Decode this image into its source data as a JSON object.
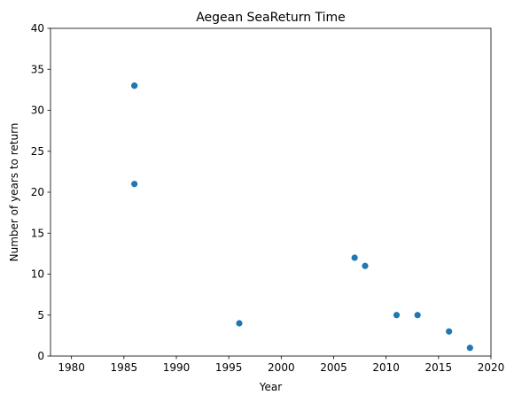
{
  "chart_data": {
    "type": "scatter",
    "title": "Aegean SeaReturn Time",
    "xlabel": "Year",
    "ylabel": "Number of years to return",
    "xlim": [
      1978,
      2020
    ],
    "ylim": [
      0,
      40
    ],
    "xticks": [
      1980,
      1985,
      1990,
      1995,
      2000,
      2005,
      2010,
      2015,
      2020
    ],
    "yticks": [
      0,
      5,
      10,
      15,
      20,
      25,
      30,
      35,
      40
    ],
    "grid": false,
    "legend": "none",
    "marker_color": "#1f77b4",
    "series": [
      {
        "x": [
          1986,
          1986,
          1986,
          1996,
          2007,
          2008,
          2011,
          2013,
          2016,
          2018
        ],
        "y": [
          33,
          33,
          21,
          4,
          12,
          11,
          5,
          5,
          3,
          1
        ]
      }
    ]
  }
}
